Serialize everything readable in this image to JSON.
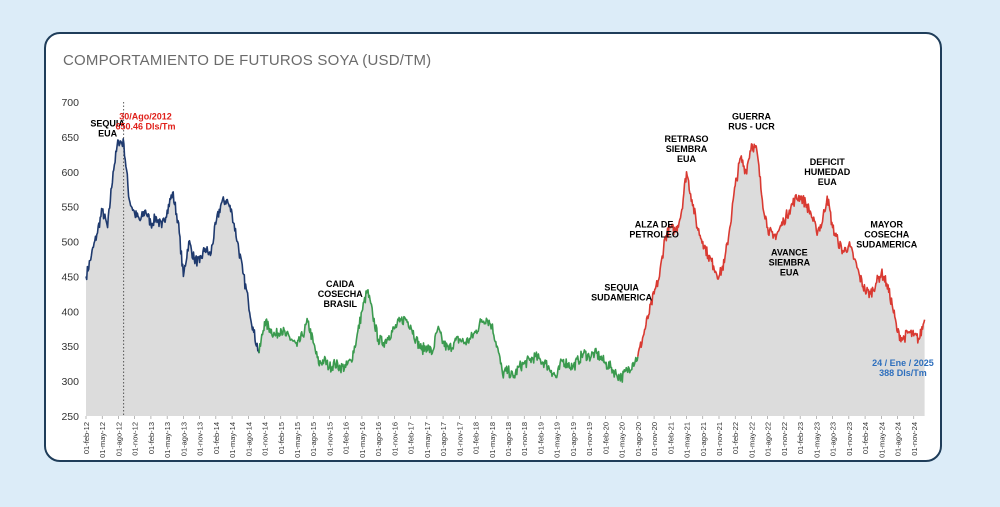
{
  "chart_data": {
    "type": "line",
    "title": "COMPORTAMIENTO DE FUTUROS SOYA (USD/TM)",
    "xlabel": "",
    "ylabel": "",
    "ylim": [
      250,
      700
    ],
    "yticks": [
      250,
      300,
      350,
      400,
      450,
      500,
      550,
      600,
      650,
      700
    ],
    "grid": false,
    "legend": "none",
    "xticks": [
      "01-feb-12",
      "01-may-12",
      "01-ago-12",
      "01-nov-12",
      "01-feb-13",
      "01-may-13",
      "01-ago-13",
      "01-nov-13",
      "01-feb-14",
      "01-may-14",
      "01-ago-14",
      "01-nov-14",
      "01-feb-15",
      "01-may-15",
      "01-ago-15",
      "01-nov-15",
      "01-feb-16",
      "01-may-16",
      "01-ago-16",
      "01-nov-16",
      "01-feb-17",
      "01-may-17",
      "01-ago-17",
      "01-nov-17",
      "01-feb-18",
      "01-may-18",
      "01-ago-18",
      "01-nov-18",
      "01-feb-19",
      "01-may-19",
      "01-ago-19",
      "01-nov-19",
      "01-feb-20",
      "01-may-20",
      "01-ago-20",
      "01-nov-20",
      "01-feb-21",
      "01-may-21",
      "01-ago-21",
      "01-nov-21",
      "01-feb-22",
      "01-may-22",
      "01-ago-22",
      "01-nov-22",
      "01-feb-23",
      "01-may-23",
      "01-ago-23",
      "01-nov-23",
      "01-feb-24",
      "01-may-24",
      "01-ago-24",
      "01-nov-24"
    ],
    "series": [
      {
        "color": "#1f3a6e",
        "points": [
          [
            "01-feb-12",
            450
          ],
          [
            "01-mar-12",
            480
          ],
          [
            "01-abr-12",
            510
          ],
          [
            "01-may-12",
            545
          ],
          [
            "01-jun-12",
            520
          ],
          [
            "01-jul-12",
            600
          ],
          [
            "01-ago-12",
            645
          ],
          [
            "01-sep-12",
            640
          ],
          [
            "01-oct-12",
            560
          ],
          [
            "01-nov-12",
            540
          ],
          [
            "01-dic-12",
            530
          ],
          [
            "01-ene-13",
            545
          ],
          [
            "01-feb-13",
            525
          ],
          [
            "01-mar-13",
            535
          ],
          [
            "01-abr-13",
            520
          ],
          [
            "01-may-13",
            545
          ],
          [
            "01-jun-13",
            570
          ],
          [
            "01-jul-13",
            530
          ],
          [
            "01-ago-13",
            450
          ],
          [
            "01-sep-13",
            500
          ],
          [
            "01-oct-13",
            475
          ],
          [
            "01-nov-13",
            470
          ],
          [
            "01-dic-13",
            490
          ],
          [
            "01-ene-14",
            480
          ],
          [
            "01-feb-14",
            525
          ],
          [
            "01-mar-14",
            555
          ],
          [
            "01-abr-14",
            560
          ],
          [
            "01-may-14",
            540
          ],
          [
            "01-jun-14",
            500
          ],
          [
            "01-jul-14",
            455
          ],
          [
            "01-ago-14",
            415
          ],
          [
            "01-sep-14",
            370
          ],
          [
            "01-oct-14",
            340
          ]
        ]
      },
      {
        "color": "#3a9a4e",
        "points": [
          [
            "01-oct-14",
            340
          ],
          [
            "01-nov-14",
            385
          ],
          [
            "01-dic-14",
            375
          ],
          [
            "01-ene-15",
            365
          ],
          [
            "01-feb-15",
            375
          ],
          [
            "01-mar-15",
            365
          ],
          [
            "01-abr-15",
            360
          ],
          [
            "01-may-15",
            350
          ],
          [
            "01-jun-15",
            365
          ],
          [
            "01-jul-15",
            385
          ],
          [
            "01-ago-15",
            355
          ],
          [
            "01-sep-15",
            325
          ],
          [
            "01-oct-15",
            330
          ],
          [
            "01-nov-15",
            320
          ],
          [
            "01-dic-15",
            325
          ],
          [
            "01-ene-16",
            320
          ],
          [
            "01-feb-16",
            320
          ],
          [
            "01-mar-16",
            330
          ],
          [
            "01-abr-16",
            360
          ],
          [
            "01-may-16",
            400
          ],
          [
            "01-jun-16",
            430
          ],
          [
            "01-jul-16",
            395
          ],
          [
            "01-ago-16",
            360
          ],
          [
            "01-sep-16",
            355
          ],
          [
            "01-oct-16",
            365
          ],
          [
            "01-nov-16",
            375
          ],
          [
            "01-dic-16",
            385
          ],
          [
            "01-ene-17",
            390
          ],
          [
            "01-feb-17",
            380
          ],
          [
            "01-mar-17",
            360
          ],
          [
            "01-abr-17",
            345
          ],
          [
            "01-may-17",
            350
          ],
          [
            "01-jun-17",
            340
          ],
          [
            "01-jul-17",
            375
          ],
          [
            "01-ago-17",
            355
          ],
          [
            "01-sep-17",
            345
          ],
          [
            "01-oct-17",
            355
          ],
          [
            "01-nov-17",
            360
          ],
          [
            "01-dic-17",
            355
          ],
          [
            "01-ene-18",
            360
          ],
          [
            "01-feb-18",
            370
          ],
          [
            "01-mar-18",
            385
          ],
          [
            "01-abr-18",
            390
          ],
          [
            "01-may-18",
            380
          ],
          [
            "01-jun-18",
            350
          ],
          [
            "01-jul-18",
            310
          ],
          [
            "01-ago-18",
            315
          ],
          [
            "01-sep-18",
            305
          ],
          [
            "01-oct-18",
            320
          ],
          [
            "01-nov-18",
            325
          ],
          [
            "01-dic-18",
            330
          ],
          [
            "01-ene-19",
            335
          ],
          [
            "01-feb-19",
            330
          ],
          [
            "01-mar-19",
            325
          ],
          [
            "01-abr-19",
            315
          ],
          [
            "01-may-19",
            305
          ],
          [
            "01-jun-19",
            330
          ],
          [
            "01-jul-19",
            325
          ],
          [
            "01-ago-19",
            320
          ],
          [
            "01-sep-19",
            330
          ],
          [
            "01-oct-19",
            340
          ],
          [
            "01-nov-19",
            335
          ],
          [
            "01-dic-19",
            340
          ],
          [
            "01-ene-20",
            335
          ],
          [
            "01-feb-20",
            325
          ],
          [
            "01-mar-20",
            320
          ],
          [
            "01-abr-20",
            310
          ],
          [
            "01-may-20",
            305
          ],
          [
            "01-jun-20",
            315
          ],
          [
            "01-jul-20",
            325
          ],
          [
            "01-ago-20",
            335
          ]
        ]
      },
      {
        "color": "#d93a32",
        "points": [
          [
            "01-ago-20",
            335
          ],
          [
            "01-sep-20",
            365
          ],
          [
            "01-oct-20",
            395
          ],
          [
            "01-nov-20",
            425
          ],
          [
            "01-dic-20",
            450
          ],
          [
            "01-ene-21",
            505
          ],
          [
            "01-feb-21",
            520
          ],
          [
            "01-mar-21",
            515
          ],
          [
            "01-abr-21",
            540
          ],
          [
            "01-may-21",
            600
          ],
          [
            "01-jun-21",
            560
          ],
          [
            "01-jul-21",
            520
          ],
          [
            "01-ago-21",
            500
          ],
          [
            "01-sep-21",
            480
          ],
          [
            "01-oct-21",
            465
          ],
          [
            "01-nov-21",
            450
          ],
          [
            "01-dic-21",
            470
          ],
          [
            "01-ene-22",
            520
          ],
          [
            "01-feb-22",
            580
          ],
          [
            "01-mar-22",
            620
          ],
          [
            "01-abr-22",
            600
          ],
          [
            "01-may-22",
            640
          ],
          [
            "01-jun-22",
            630
          ],
          [
            "01-jul-22",
            560
          ],
          [
            "01-ago-22",
            520
          ],
          [
            "01-sep-22",
            505
          ],
          [
            "01-oct-22",
            515
          ],
          [
            "01-nov-22",
            530
          ],
          [
            "01-dic-22",
            545
          ],
          [
            "01-ene-23",
            560
          ],
          [
            "01-feb-23",
            565
          ],
          [
            "01-mar-23",
            555
          ],
          [
            "01-abr-23",
            540
          ],
          [
            "01-may-23",
            515
          ],
          [
            "01-jun-23",
            525
          ],
          [
            "01-jul-23",
            565
          ],
          [
            "01-ago-23",
            520
          ],
          [
            "01-sep-23",
            500
          ],
          [
            "01-oct-23",
            485
          ],
          [
            "01-nov-23",
            495
          ],
          [
            "01-dic-23",
            475
          ],
          [
            "01-ene-24",
            450
          ],
          [
            "01-feb-24",
            430
          ],
          [
            "01-mar-24",
            425
          ],
          [
            "01-abr-24",
            440
          ],
          [
            "01-may-24",
            455
          ],
          [
            "01-jun-24",
            440
          ],
          [
            "01-jul-24",
            410
          ],
          [
            "01-ago-24",
            370
          ],
          [
            "01-sep-24",
            360
          ],
          [
            "01-oct-24",
            370
          ],
          [
            "01-nov-24",
            365
          ],
          [
            "01-dic-24",
            360
          ],
          [
            "01-ene-25",
            388
          ]
        ]
      }
    ],
    "reference_line": {
      "x": "30-ago-12",
      "style": "dotted"
    },
    "annotations": [
      {
        "lines": [
          "SEQUIA",
          "EUA"
        ],
        "x": "01-jun-12",
        "y": 665,
        "color": "#000000"
      },
      {
        "lines": [
          "30/Ago/2012",
          "650.46 Dls/Tm"
        ],
        "x": "01-ene-13",
        "y": 675,
        "color": "#e0201a"
      },
      {
        "lines": [
          "CAIDA",
          "COSECHA",
          "BRASIL"
        ],
        "x": "01-ene-16",
        "y": 435,
        "color": "#000000"
      },
      {
        "lines": [
          "SEQUIA",
          "SUDAMERICA"
        ],
        "x": "01-may-20",
        "y": 430,
        "color": "#000000"
      },
      {
        "lines": [
          "ALZA DE",
          "PETROLEO"
        ],
        "x": "01-nov-20",
        "y": 520,
        "color": "#000000"
      },
      {
        "lines": [
          "RETRASO",
          "SIEMBRA",
          "EUA"
        ],
        "x": "01-may-21",
        "y": 643,
        "color": "#000000"
      },
      {
        "lines": [
          "GUERRA",
          "RUS - UCR"
        ],
        "x": "01-may-22",
        "y": 675,
        "color": "#000000"
      },
      {
        "lines": [
          "DEFICIT",
          "HUMEDAD",
          "EUA"
        ],
        "x": "01-jul-23",
        "y": 610,
        "color": "#000000"
      },
      {
        "lines": [
          "AVANCE",
          "SIEMBRA",
          "EUA"
        ],
        "x": "01-dic-22",
        "y": 480,
        "color": "#000000"
      },
      {
        "lines": [
          "MAYOR",
          "COSECHA",
          "SUDAMERICA"
        ],
        "x": "01-jun-24",
        "y": 520,
        "color": "#000000"
      },
      {
        "lines": [
          "24 / Ene / 2025",
          "388  Dls/Tm"
        ],
        "x": "01-sep-24",
        "y": 322,
        "color": "#2e6fbd"
      }
    ]
  }
}
